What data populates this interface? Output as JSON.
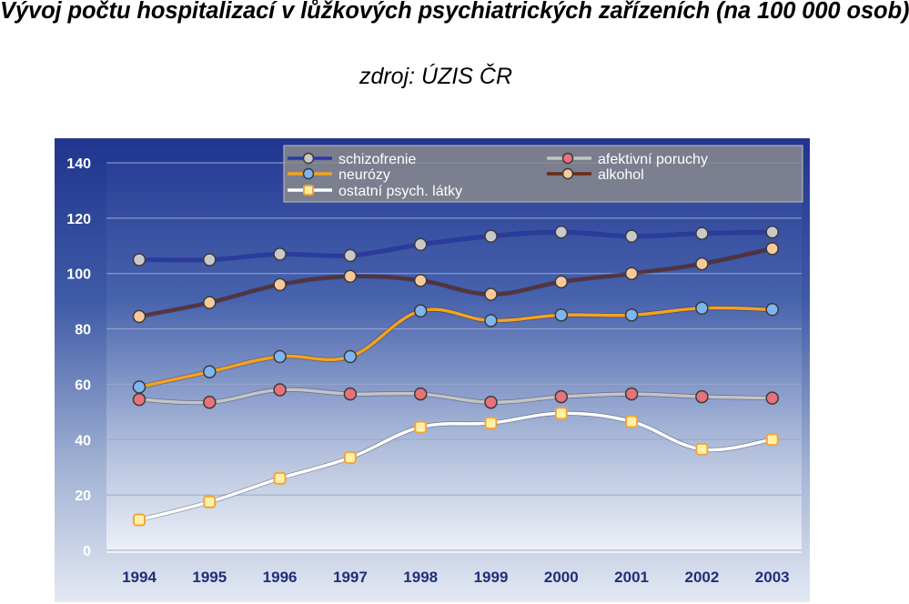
{
  "page": {
    "title": "Vývoj počtu hospitalizací v lůžkových psychiatrických zařízeních (na 100 000 osob)",
    "source": "zdroj: ÚZIS ČR"
  },
  "chart_data": {
    "type": "line",
    "x": [
      "1994",
      "1995",
      "1996",
      "1997",
      "1998",
      "1999",
      "2000",
      "2001",
      "2002",
      "2003"
    ],
    "ylim": [
      0,
      140
    ],
    "yticks": [
      "0",
      "20",
      "40",
      "60",
      "80",
      "100",
      "120",
      "140"
    ],
    "grid": true,
    "legend_position": "top",
    "series": [
      {
        "name": "schizofrenie",
        "line_color": "#2b3aa8",
        "marker_color": "#c9c9c9",
        "values": [
          105,
          105,
          107,
          106.5,
          110.5,
          113.5,
          115,
          113.5,
          114.5,
          115
        ]
      },
      {
        "name": "afektivní poruchy",
        "line_color": "#c4c4c4",
        "marker_color": "#e8727a",
        "values": [
          54.5,
          53.5,
          58,
          56.5,
          56.5,
          53.5,
          55.5,
          56.5,
          55.5,
          55
        ]
      },
      {
        "name": "neurózy",
        "line_color": "#f5a21d",
        "marker_color": "#7fb6f0",
        "values": [
          59,
          64.5,
          70,
          70,
          86.5,
          83,
          85,
          85,
          87.5,
          87
        ]
      },
      {
        "name": "alkohol",
        "line_color": "#6b2a12",
        "marker_color": "#f7c99b",
        "values": [
          84.5,
          89.5,
          96,
          99,
          97.5,
          92.5,
          97,
          100,
          103.5,
          109
        ]
      },
      {
        "name": "ostatní psych. látky",
        "line_color": "#ffffff",
        "marker_color": "#fff2a8",
        "values": [
          11,
          17.5,
          26,
          33.5,
          44.5,
          46,
          49.5,
          46.5,
          36.5,
          40
        ]
      }
    ]
  }
}
